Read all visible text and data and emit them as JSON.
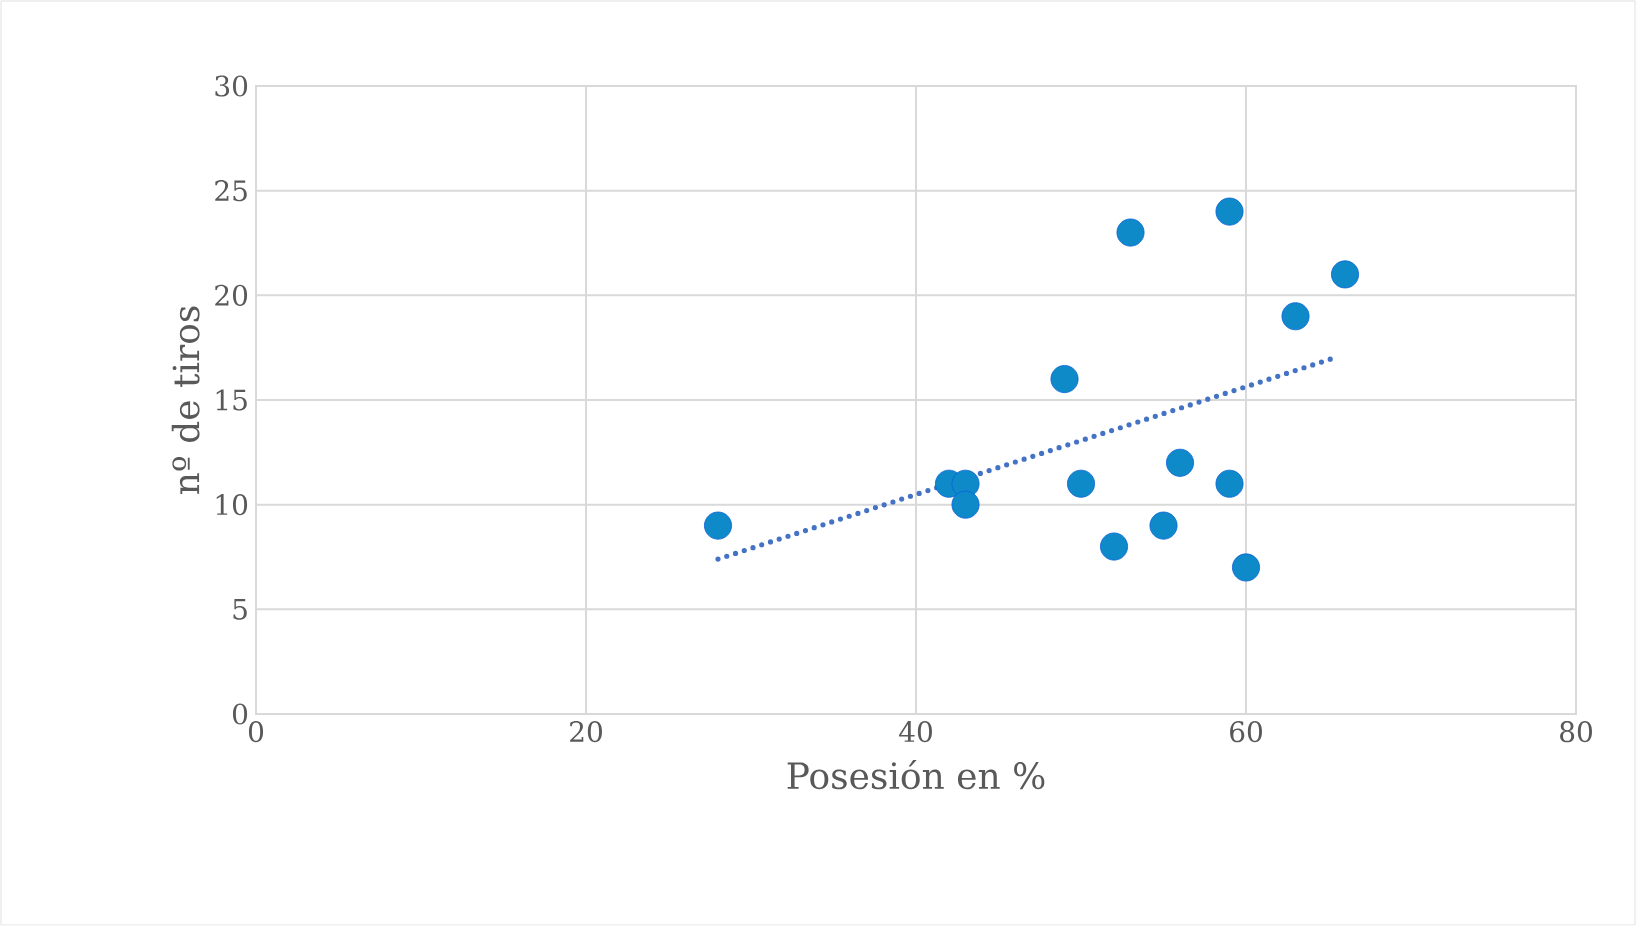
{
  "chart_data": {
    "type": "scatter",
    "xlabel": "Posesión en %",
    "ylabel": "nº de tiros",
    "xlim": [
      0,
      80
    ],
    "xticks": [
      0,
      20,
      40,
      60,
      80
    ],
    "ylim": [
      0,
      30
    ],
    "yticks": [
      0,
      5,
      10,
      15,
      20,
      25,
      30
    ],
    "grid": true,
    "marker": "circle",
    "series": [
      {
        "color": "#0e8ac8",
        "x": [
          28,
          42,
          43,
          43,
          49,
          50,
          52,
          53,
          55,
          56,
          59,
          59,
          60,
          63,
          66
        ],
        "values": [
          9,
          11,
          11,
          10,
          16,
          11,
          8,
          23,
          9,
          12,
          24,
          11,
          7,
          19,
          21
        ]
      },
      {
        "type": "line",
        "marker": "none",
        "color": "#4472c4",
        "line_style": "dotted",
        "x": [
          28,
          65.3
        ],
        "values": [
          7.4,
          17.0
        ]
      }
    ]
  }
}
